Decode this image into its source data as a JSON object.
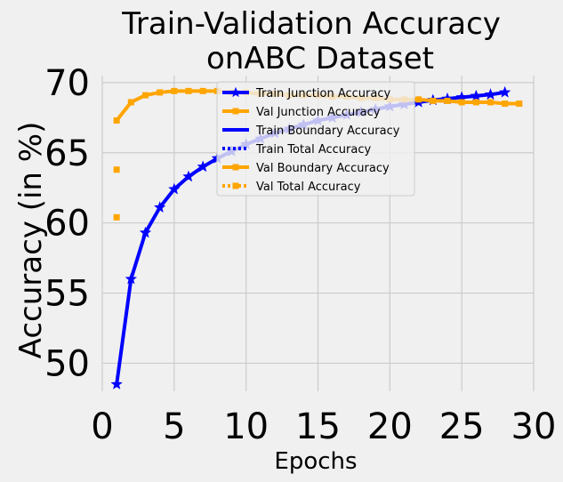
{
  "chart_data": {
    "type": "line",
    "title_line1": "Train-Validation Accuracy",
    "title_line2": "onABC Dataset",
    "xlabel": "Epochs",
    "ylabel": "Accuracy (in %)",
    "xlim": [
      0,
      30
    ],
    "ylim": [
      48,
      70.5
    ],
    "xticks": [
      0,
      5,
      10,
      15,
      20,
      25,
      30
    ],
    "yticks": [
      50,
      55,
      60,
      65,
      70
    ],
    "grid": true,
    "legend_position": "upper-center",
    "series": [
      {
        "name": "Train Junction Accuracy",
        "color": "#0000ff",
        "line_style": "solid",
        "marker": "star",
        "x": [
          1,
          2,
          3,
          4,
          5,
          6,
          7,
          8,
          9,
          10,
          11,
          12,
          13,
          14,
          15,
          16,
          17,
          18,
          19,
          20,
          21,
          22,
          23,
          24,
          25,
          26,
          27,
          28
        ],
        "y": [
          48.5,
          56.0,
          59.3,
          61.1,
          62.4,
          63.3,
          64.0,
          64.6,
          65.1,
          65.6,
          66.0,
          66.4,
          66.7,
          67.0,
          67.3,
          67.5,
          67.7,
          67.9,
          68.1,
          68.3,
          68.45,
          68.6,
          68.75,
          68.85,
          68.95,
          69.05,
          69.15,
          69.3
        ]
      },
      {
        "name": "Val Junction Accuracy",
        "color": "#ffa500",
        "line_style": "solid",
        "marker": "square",
        "x": [
          1,
          2,
          3,
          4,
          5,
          6,
          7,
          8,
          9,
          10,
          11,
          12,
          13,
          14,
          15,
          16,
          17,
          18,
          19,
          20,
          21,
          22,
          23,
          24,
          25,
          26,
          27,
          28,
          29
        ],
        "y": [
          67.3,
          68.6,
          69.1,
          69.3,
          69.4,
          69.4,
          69.4,
          69.4,
          69.3,
          69.3,
          69.2,
          69.2,
          69.1,
          69.1,
          69.1,
          69.0,
          69.0,
          68.9,
          68.9,
          68.8,
          68.8,
          68.8,
          68.7,
          68.7,
          68.6,
          68.6,
          68.6,
          68.5,
          68.5
        ]
      },
      {
        "name": "Train Boundary Accuracy",
        "color": "#0000ff",
        "line_style": "solid",
        "marker": "none",
        "x": [],
        "y": []
      },
      {
        "name": "Train Total Accuracy",
        "color": "#0000ff",
        "line_style": "dotted",
        "marker": "none",
        "x": [],
        "y": []
      },
      {
        "name": "Val Boundary Accuracy",
        "color": "#ffa500",
        "line_style": "solid",
        "marker": "square",
        "x": [
          1
        ],
        "y": [
          63.8
        ]
      },
      {
        "name": "Val Total Accuracy",
        "color": "#ffa500",
        "line_style": "dotted",
        "marker": "square",
        "x": [
          1
        ],
        "y": [
          60.4
        ]
      }
    ]
  }
}
